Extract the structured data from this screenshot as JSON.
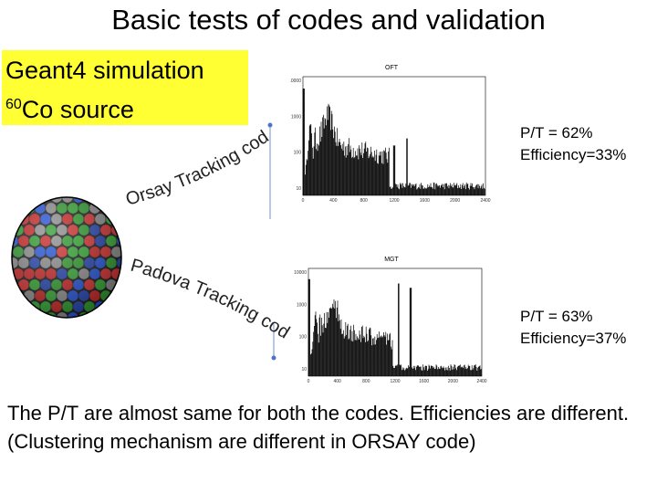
{
  "slide": {
    "title": "Basic tests of codes and validation",
    "sim_box": {
      "line1": "Geant4 simulation",
      "line2_superscript": "60",
      "line2_text": "Co source",
      "background_color": "#ffff33"
    },
    "orsay_label": "Orsay Tracking code",
    "padova_label": "Padova Tracking code",
    "spectrum_top": {
      "label": "OFT",
      "y_ticks": [
        "10000",
        "1000",
        "100",
        "10"
      ],
      "x_ticks": [
        "0",
        "400",
        "800",
        "1200",
        "1600",
        "2000",
        "2400"
      ]
    },
    "spectrum_bottom": {
      "label": "MGT",
      "y_ticks": [
        "10000",
        "1000",
        "100",
        "10"
      ],
      "x_ticks": [
        "0",
        "400",
        "800",
        "1200",
        "1600",
        "2000",
        "2400"
      ]
    },
    "stats_top": {
      "pt": "P/T = 62%",
      "efficiency": "Efficiency=33%"
    },
    "stats_bottom": {
      "pt": "P/T = 63%",
      "efficiency": "Efficiency=37%"
    },
    "conclusion": "The P/T are almost same for both the codes.  Efficiencies are different. (Clustering mechanism are different in ORSAY code)"
  }
}
